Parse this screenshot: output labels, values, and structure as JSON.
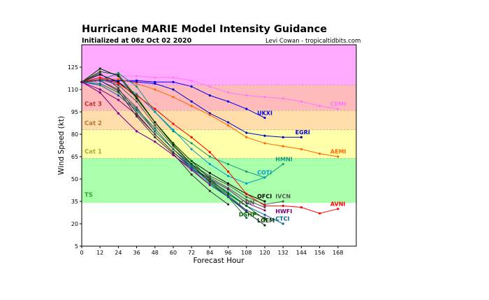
{
  "header": {
    "title": "Hurricane MARIE Model Intensity Guidance",
    "subtitle": "Initialized at 06z Oct 02 2020",
    "credit": "Levi Cowan - tropicaltidbits.com"
  },
  "chart_data": {
    "type": "line",
    "xlabel": "Forecast Hour",
    "ylabel": "Wind Speed (kt)",
    "xlim": [
      0,
      180
    ],
    "ylim": [
      5,
      140
    ],
    "xticks": [
      0,
      12,
      24,
      36,
      48,
      60,
      72,
      84,
      96,
      108,
      120,
      132,
      144,
      156,
      168
    ],
    "yticks": [
      5,
      20,
      35,
      50,
      65,
      80,
      95,
      110,
      125
    ],
    "bands": [
      {
        "name": "TS",
        "from": 34,
        "to": 64,
        "color": "#aaffaa",
        "label_color": "#33aa33",
        "label_y": 38
      },
      {
        "name": "Cat 1",
        "from": 64,
        "to": 83,
        "color": "#ffffaa",
        "label_color": "#aaaa33",
        "label_y": 67
      },
      {
        "name": "Cat 2",
        "from": 83,
        "to": 96,
        "color": "#ffddaa",
        "label_color": "#bb7733",
        "label_y": 86
      },
      {
        "name": "Cat 3",
        "from": 96,
        "to": 113,
        "color": "#ffbbbb",
        "label_color": "#bb3333",
        "label_y": 99
      },
      {
        "name": "",
        "from": 113,
        "to": 140,
        "color": "#ffaaff",
        "label_color": "#bb33bb",
        "label_y": 119
      }
    ],
    "series": [
      {
        "name": "CEMI",
        "color": "#ff77ff",
        "x": [
          0,
          12,
          24,
          36,
          48,
          60,
          72,
          84,
          96,
          108,
          120,
          132,
          144,
          156,
          168
        ],
        "y": [
          115,
          118,
          119,
          119,
          118,
          118,
          116,
          112,
          108,
          106,
          105,
          104,
          102,
          99,
          97
        ],
        "label_x": 163,
        "label_y": 99
      },
      {
        "name": "UKXI",
        "color": "#0000ee",
        "x": [
          0,
          12,
          24,
          36,
          48,
          60,
          72,
          84,
          96,
          108,
          120
        ],
        "y": [
          115,
          116,
          116,
          116,
          115,
          115,
          112,
          106,
          102,
          97,
          91
        ],
        "label_x": 115,
        "label_y": 93
      },
      {
        "name": "EGRI",
        "color": "#0000cc",
        "x": [
          0,
          12,
          24,
          36,
          48,
          60,
          72,
          84,
          96,
          108,
          120,
          132,
          144
        ],
        "y": [
          115,
          116,
          116,
          115,
          114,
          110,
          102,
          94,
          88,
          81,
          79,
          78,
          78
        ],
        "label_x": 140,
        "label_y": 80
      },
      {
        "name": "AEMI",
        "color": "#ff6600",
        "x": [
          0,
          12,
          24,
          36,
          48,
          60,
          72,
          84,
          96,
          108,
          120,
          132,
          144,
          156,
          168
        ],
        "y": [
          115,
          117,
          117,
          114,
          110,
          105,
          99,
          93,
          86,
          78,
          74,
          72,
          70,
          67,
          65
        ],
        "label_x": 163,
        "label_y": 67
      },
      {
        "name": "HMNI",
        "color": "#119977",
        "x": [
          0,
          12,
          24,
          36,
          48,
          60,
          72,
          84,
          96,
          108,
          120,
          132
        ],
        "y": [
          115,
          116,
          121,
          112,
          95,
          82,
          74,
          65,
          60,
          55,
          51,
          60
        ],
        "label_x": 127,
        "label_y": 62
      },
      {
        "name": "COTI",
        "color": "#0099cc",
        "x": [
          0,
          12,
          24,
          36,
          48,
          60,
          72,
          84,
          96,
          108,
          120
        ],
        "y": [
          115,
          116,
          115,
          107,
          95,
          83,
          70,
          60,
          52,
          47,
          51
        ],
        "label_x": 115,
        "label_y": 53
      },
      {
        "name": "OFCI",
        "color": "#000000",
        "x": [
          0,
          12,
          24,
          36,
          48,
          60,
          72,
          84,
          96,
          108,
          120
        ],
        "y": [
          115,
          120,
          115,
          105,
          88,
          74,
          62,
          54,
          47,
          40,
          35
        ],
        "label_x": 115,
        "label_y": 37
      },
      {
        "name": "IVCN",
        "color": "#555555",
        "x": [
          0,
          12,
          24,
          36,
          48,
          60,
          72,
          84,
          96,
          108,
          120,
          132
        ],
        "y": [
          115,
          117,
          113,
          102,
          86,
          72,
          60,
          52,
          46,
          38,
          33,
          35
        ],
        "label_x": 127,
        "label_y": 37
      },
      {
        "name": "AVNI",
        "color": "#ff0000",
        "x": [
          0,
          12,
          24,
          36,
          48,
          60,
          72,
          84,
          96,
          108,
          120,
          132,
          144,
          156,
          168
        ],
        "y": [
          115,
          118,
          114,
          106,
          97,
          87,
          78,
          68,
          55,
          40,
          32,
          32,
          31,
          27,
          30
        ],
        "label_x": 163,
        "label_y": 32
      },
      {
        "name": "ICON",
        "color": "#555555",
        "x": [
          0,
          12,
          24,
          36,
          48,
          60,
          72,
          84,
          96,
          108,
          120
        ],
        "y": [
          115,
          116,
          110,
          98,
          82,
          70,
          60,
          51,
          44,
          36,
          31
        ],
        "label_x": 103,
        "label_y": 33
      },
      {
        "name": "HWFI",
        "color": "#770077",
        "x": [
          0,
          12,
          24,
          36,
          48,
          60,
          72,
          84,
          96,
          108,
          120
        ],
        "y": [
          115,
          110,
          103,
          93,
          80,
          68,
          58,
          50,
          43,
          34,
          29
        ],
        "label_x": 127,
        "label_y": 27
      },
      {
        "name": "CTCI",
        "color": "#006699",
        "x": [
          0,
          12,
          24,
          36,
          48,
          60,
          72,
          84,
          96,
          108,
          120,
          132
        ],
        "y": [
          115,
          113,
          106,
          96,
          82,
          70,
          58,
          49,
          41,
          32,
          26,
          20
        ],
        "label_x": 127,
        "label_y": 22
      },
      {
        "name": "DSHP",
        "color": "#006600",
        "x": [
          0,
          12,
          24,
          36,
          48,
          60,
          72,
          84,
          96,
          108,
          120
        ],
        "y": [
          115,
          122,
          120,
          105,
          88,
          74,
          62,
          50,
          40,
          32,
          23
        ],
        "label_x": 103,
        "label_y": 25
      },
      {
        "name": "LGEM",
        "color": "#003300",
        "x": [
          0,
          12,
          24,
          36,
          48,
          60,
          72,
          84,
          96,
          108,
          120
        ],
        "y": [
          115,
          124,
          119,
          104,
          88,
          73,
          60,
          48,
          38,
          28,
          19
        ],
        "label_x": 115,
        "label_y": 21
      },
      {
        "name": "",
        "color": "#444444",
        "x": [
          0,
          12,
          24,
          36,
          48,
          60,
          72,
          84,
          96,
          108,
          120
        ],
        "y": [
          115,
          121,
          111,
          94,
          80,
          68,
          57,
          49,
          39,
          29,
          24
        ],
        "label_x": 0,
        "label_y": 0
      },
      {
        "name": "",
        "color": "#117755",
        "x": [
          0,
          12,
          24,
          36,
          48,
          60,
          72,
          84,
          96,
          108
        ],
        "y": [
          115,
          114,
          108,
          97,
          84,
          70,
          59,
          47,
          38,
          24
        ],
        "label_x": 0,
        "label_y": 0
      },
      {
        "name": "",
        "color": "#333333",
        "x": [
          0,
          12,
          24,
          36,
          48,
          60,
          72,
          84,
          96
        ],
        "y": [
          115,
          116,
          109,
          92,
          78,
          67,
          53,
          42,
          33
        ],
        "label_x": 0,
        "label_y": 0
      },
      {
        "name": "",
        "color": "#2244aa",
        "x": [
          0,
          12,
          24,
          36,
          48,
          60,
          72,
          84,
          96,
          108
        ],
        "y": [
          115,
          108,
          94,
          82,
          75,
          66,
          57,
          46,
          38,
          29
        ],
        "label_x": 0,
        "label_y": 0
      },
      {
        "name": "",
        "color": "#990099",
        "x": [
          0,
          12,
          24,
          36,
          48,
          60,
          72,
          84
        ],
        "y": [
          115,
          108,
          94,
          82,
          75,
          66,
          56,
          46
        ],
        "label_x": 0,
        "label_y": 0
      }
    ]
  }
}
